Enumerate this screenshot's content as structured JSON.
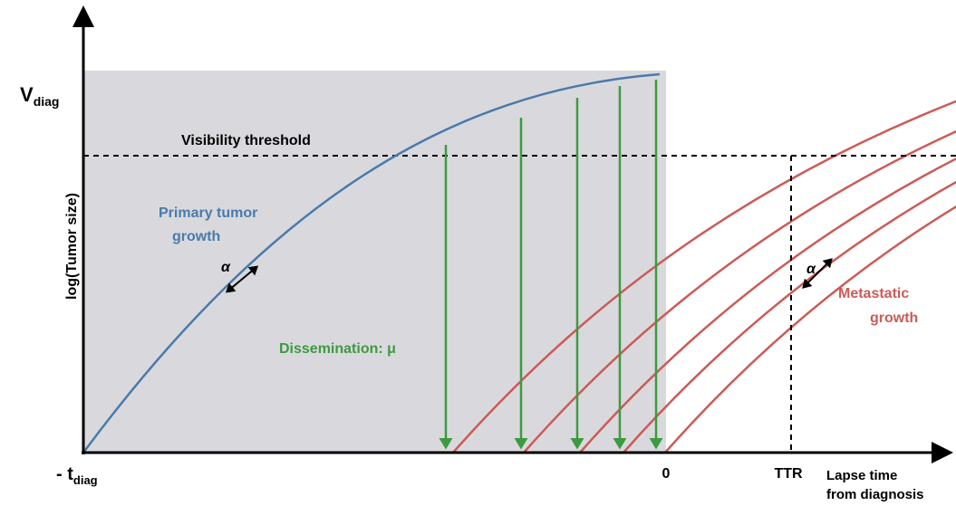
{
  "axes": {
    "y_top": {
      "main": "V",
      "sub": "diag"
    },
    "y_label": "log(Tumor size)",
    "x_start": {
      "main": "- t",
      "sub": "diag"
    },
    "x_zero": "0",
    "x_ttr": "TTR",
    "x_label": [
      "Lapse time",
      "from diagnosis"
    ]
  },
  "annotations": {
    "threshold": "Visibility threshold",
    "primary": [
      "Primary tumor",
      "growth"
    ],
    "primary_rate": "α",
    "dissemination": "Dissemination: μ",
    "metastatic": [
      "Metastatic",
      "growth"
    ],
    "metastatic_rate": "α"
  }
}
